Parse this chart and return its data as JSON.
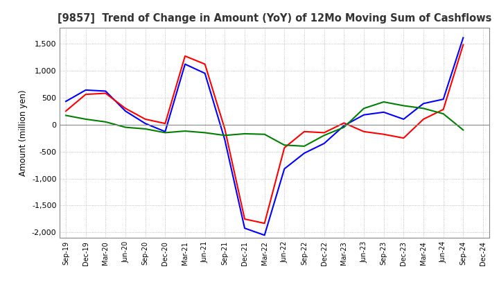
{
  "title": "[9857]  Trend of Change in Amount (YoY) of 12Mo Moving Sum of Cashflows",
  "ylabel": "Amount (million yen)",
  "ylim": [
    -2100,
    1800
  ],
  "yticks": [
    -2000,
    -1500,
    -1000,
    -500,
    0,
    500,
    1000,
    1500
  ],
  "x_labels": [
    "Sep-19",
    "Dec-19",
    "Mar-20",
    "Jun-20",
    "Sep-20",
    "Dec-20",
    "Mar-21",
    "Jun-21",
    "Sep-21",
    "Dec-21",
    "Mar-22",
    "Jun-22",
    "Sep-22",
    "Dec-22",
    "Mar-23",
    "Jun-23",
    "Sep-23",
    "Dec-23",
    "Mar-24",
    "Jun-24",
    "Sep-24",
    "Dec-24"
  ],
  "operating": [
    250,
    560,
    580,
    300,
    100,
    20,
    1270,
    1120,
    -80,
    -1750,
    -1830,
    -430,
    -130,
    -150,
    30,
    -130,
    -180,
    -250,
    100,
    280,
    1480,
    null
  ],
  "investing": [
    170,
    100,
    50,
    -50,
    -80,
    -150,
    -120,
    -150,
    -200,
    -170,
    -180,
    -380,
    -400,
    -200,
    -50,
    300,
    420,
    350,
    300,
    200,
    -100,
    null
  ],
  "free": [
    430,
    640,
    620,
    250,
    20,
    -130,
    1120,
    950,
    -280,
    -1920,
    -2050,
    -820,
    -530,
    -350,
    -20,
    180,
    230,
    100,
    390,
    470,
    1610,
    null
  ],
  "colors": {
    "operating": "#ff0000",
    "investing": "#008000",
    "free": "#0000ff"
  },
  "background": "#ffffff",
  "grid_color": "#b0b0b0"
}
